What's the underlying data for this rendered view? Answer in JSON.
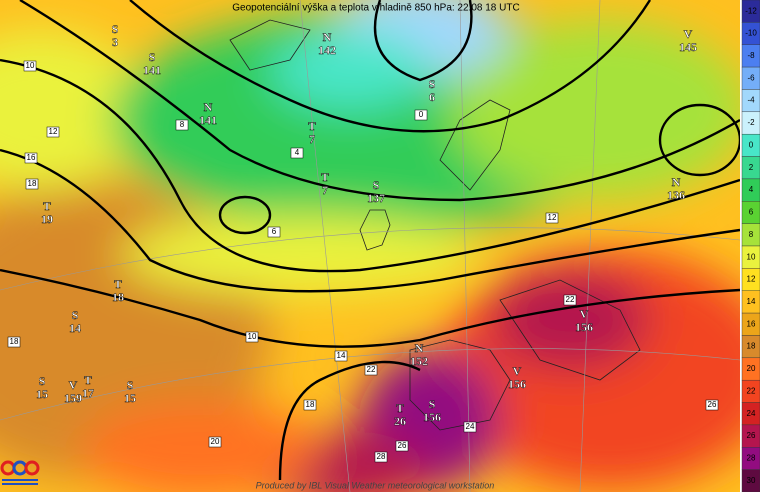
{
  "title": "Geopotenciální výška a teplota v hladině 850 hPa: 22.08 18 UTC",
  "footer": "Produced by IBL Visual Weather meteorological workstation",
  "colorbar": {
    "ticks": [
      -12,
      -10,
      -8,
      -6,
      -4,
      -2,
      0,
      2,
      4,
      6,
      8,
      10,
      12,
      14,
      16,
      18,
      20,
      22,
      24,
      26,
      28,
      30
    ],
    "colors": [
      "#2b2b9a",
      "#3452d4",
      "#4c7ff0",
      "#74aef8",
      "#a2d8fc",
      "#cbf1fc",
      "#48e6c8",
      "#38d890",
      "#30cc58",
      "#5ad232",
      "#a6e23a",
      "#eaf23e",
      "#ffe020",
      "#ffc020",
      "#eca51a",
      "#d88a2c",
      "#ff7222",
      "#f24420",
      "#d42222",
      "#b4154e",
      "#920c80",
      "#5e0a40"
    ]
  },
  "pressure_centers": [
    {
      "letter": "S",
      "value": "3"
    },
    {
      "letter": "S",
      "value": "141"
    },
    {
      "letter": "N",
      "value": "142"
    },
    {
      "letter": "S",
      "value": "6"
    },
    {
      "letter": "N",
      "value": "141"
    },
    {
      "letter": "T",
      "value": "7"
    },
    {
      "letter": "T",
      "value": "7"
    },
    {
      "letter": "S",
      "value": "137"
    },
    {
      "letter": "V",
      "value": "145"
    },
    {
      "letter": "N",
      "value": "136"
    },
    {
      "letter": "T",
      "value": "19"
    },
    {
      "letter": "T",
      "value": "18"
    },
    {
      "letter": "S",
      "value": "14"
    },
    {
      "letter": "N",
      "value": "152"
    },
    {
      "letter": "S",
      "value": "15"
    },
    {
      "letter": "V",
      "value": "159"
    },
    {
      "letter": "T",
      "value": "17"
    },
    {
      "letter": "S",
      "value": "15"
    },
    {
      "letter": "T",
      "value": "26"
    },
    {
      "letter": "S",
      "value": "156"
    },
    {
      "letter": "V",
      "value": "156"
    },
    {
      "letter": "V",
      "value": "156"
    }
  ],
  "isotherm_labels": [
    10,
    12,
    16,
    18,
    8,
    0,
    4,
    6,
    12,
    18,
    10,
    14,
    22,
    18,
    24,
    20,
    26,
    28,
    22,
    26
  ]
}
